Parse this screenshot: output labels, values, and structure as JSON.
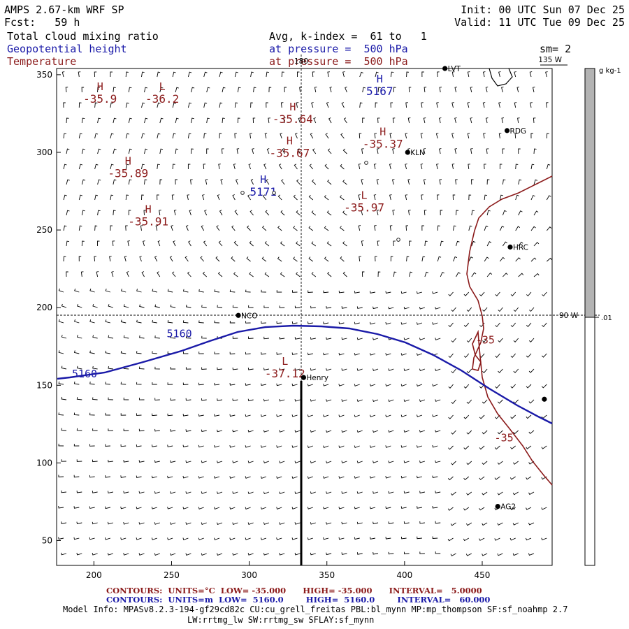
{
  "header": {
    "model": "AMPS 2.67-km WRF SP",
    "init": "Init: 00 UTC Sun 07 Dec 25",
    "fcst": "Fcst:   59 h",
    "valid": "Valid: 11 UTC Tue 09 Dec 25",
    "field1": "Total cloud mixing ratio",
    "field1_info": "Avg, k-index =  61 to   1",
    "field2": "Geopotential height",
    "field2_info": "at pressure =  500 hPa",
    "field3": "Temperature",
    "field3_info": "at pressure =  500 hPa",
    "smoothing": "sm= 2"
  },
  "axes": {
    "x_ticks": [
      "200",
      "250",
      "300",
      "350",
      "400",
      "450"
    ],
    "x_values": [
      200,
      250,
      300,
      350,
      400,
      450
    ],
    "y_ticks": [
      "350",
      "300",
      "250",
      "200",
      "150",
      "100",
      "50"
    ],
    "y_values": [
      350,
      300,
      250,
      200,
      150,
      100,
      50
    ],
    "xlim": [
      176,
      495
    ],
    "ylim": [
      34,
      354
    ]
  },
  "meridian_labels": {
    "top": "180",
    "top_right": "135 W",
    "right": "90 W"
  },
  "colorbar": {
    "unit": "g kg-1",
    "level": ".01"
  },
  "stations": [
    {
      "name": "LVT",
      "x": 426,
      "y": 354
    },
    {
      "name": "RDG",
      "x": 466,
      "y": 314
    },
    {
      "name": "KLN",
      "x": 402,
      "y": 300
    },
    {
      "name": "HRC",
      "x": 468,
      "y": 239
    },
    {
      "name": "NCO",
      "x": 293,
      "y": 195
    },
    {
      "name": "Henry",
      "x": 335,
      "y": 155
    },
    {
      "name": "AG2",
      "x": 460,
      "y": 72
    },
    {
      "name": "",
      "x": 490,
      "y": 141
    }
  ],
  "temperature_labels": [
    {
      "kind": "H",
      "value": "-35.9",
      "x": 204,
      "y": 332
    },
    {
      "kind": "L",
      "value": "-36.2",
      "x": 244,
      "y": 332
    },
    {
      "kind": "H",
      "value": "-35.64",
      "x": 328,
      "y": 319
    },
    {
      "kind": "H",
      "value": "-35.67",
      "x": 326,
      "y": 297
    },
    {
      "kind": "H",
      "value": "-35.37",
      "x": 386,
      "y": 303
    },
    {
      "kind": "H",
      "value": "-35.89",
      "x": 222,
      "y": 284
    },
    {
      "kind": "H",
      "value": "-35.91",
      "x": 235,
      "y": 253
    },
    {
      "kind": "L",
      "value": "-35.97",
      "x": 374,
      "y": 262
    },
    {
      "kind": "L",
      "value": "-37.12",
      "x": 323,
      "y": 155
    }
  ],
  "height_labels": [
    {
      "kind": "H",
      "value": "5167",
      "x": 384,
      "y": 337
    },
    {
      "kind": "H",
      "value": "5171",
      "x": 309,
      "y": 272
    }
  ],
  "contour_labels": {
    "height": [
      {
        "text": "5160",
        "x": 194,
        "y": 155
      },
      {
        "text": "5160",
        "x": 255,
        "y": 181
      }
    ],
    "temperature": [
      {
        "text": "-35",
        "x": 452,
        "y": 177
      },
      {
        "text": "-35",
        "x": 464,
        "y": 114
      }
    ]
  },
  "contour_info": {
    "temperature": "CONTOURS:  UNITS=°C  LOW= -35.000      HIGH= -35.000      INTERVAL=   5.0000",
    "height": "CONTOURS:  UNITS=m  LOW=  5160.0        HIGH=  5160.0        INTERVAL=   60.000"
  },
  "model_info": "Model Info: MPASv8.2.3-194-gf29cd82c CU:cu_grell_freitas PBL:bl_mynn MP:mp_thompson SF:sf_noahmp 2.7",
  "model_info_2": "LW:rrtmg_lw SW:rrtmg_sw SFLAY:sf_mynn",
  "colors": {
    "height": "#1a1aa8",
    "temperature": "#8b1a1a",
    "colorbar_fill": "#b3b3b3"
  }
}
